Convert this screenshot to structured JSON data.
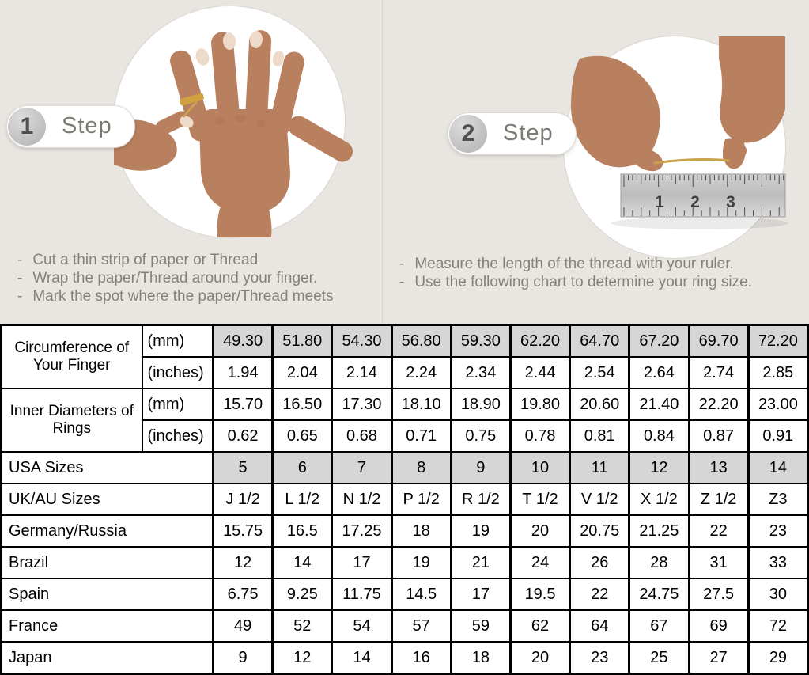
{
  "steps": [
    {
      "number": "1",
      "label": "Step",
      "instructions": [
        "Cut a thin strip of paper or Thread",
        "Wrap the paper/Thread around your finger.",
        "Mark the spot where the paper/Thread meets"
      ]
    },
    {
      "number": "2",
      "label": "Step",
      "instructions": [
        "Measure the length of the thread with your ruler.",
        "Use the following chart to determine your ring size."
      ]
    }
  ],
  "decor": {
    "ruler_numbers": [
      "1",
      "2",
      "3"
    ],
    "background_color": "#e9e6e2",
    "shaded_cell_color": "#d6d6d6",
    "thread_color": "#c9a24b"
  },
  "size_chart": {
    "group_rows": [
      {
        "label": "Circumference of Your Finger",
        "sub_rows": [
          {
            "unit": "(mm)",
            "shaded": true,
            "values": [
              "49.30",
              "51.80",
              "54.30",
              "56.80",
              "59.30",
              "62.20",
              "64.70",
              "67.20",
              "69.70",
              "72.20"
            ]
          },
          {
            "unit": "(inches)",
            "shaded": false,
            "values": [
              "1.94",
              "2.04",
              "2.14",
              "2.24",
              "2.34",
              "2.44",
              "2.54",
              "2.64",
              "2.74",
              "2.85"
            ]
          }
        ]
      },
      {
        "label": "Inner Diameters of Rings",
        "sub_rows": [
          {
            "unit": "(mm)",
            "shaded": false,
            "values": [
              "15.70",
              "16.50",
              "17.30",
              "18.10",
              "18.90",
              "19.80",
              "20.60",
              "21.40",
              "22.20",
              "23.00"
            ]
          },
          {
            "unit": "(inches)",
            "shaded": false,
            "values": [
              "0.62",
              "0.65",
              "0.68",
              "0.71",
              "0.75",
              "0.78",
              "0.81",
              "0.84",
              "0.87",
              "0.91"
            ]
          }
        ]
      }
    ],
    "simple_rows": [
      {
        "label": "USA Sizes",
        "shaded": true,
        "values": [
          "5",
          "6",
          "7",
          "8",
          "9",
          "10",
          "11",
          "12",
          "13",
          "14"
        ]
      },
      {
        "label": "UK/AU Sizes",
        "shaded": false,
        "values": [
          "J 1/2",
          "L 1/2",
          "N 1/2",
          "P 1/2",
          "R 1/2",
          "T 1/2",
          "V 1/2",
          "X 1/2",
          "Z 1/2",
          "Z3"
        ]
      },
      {
        "label": "Germany/Russia",
        "shaded": false,
        "values": [
          "15.75",
          "16.5",
          "17.25",
          "18",
          "19",
          "20",
          "20.75",
          "21.25",
          "22",
          "23"
        ]
      },
      {
        "label": "Brazil",
        "shaded": false,
        "values": [
          "12",
          "14",
          "17",
          "19",
          "21",
          "24",
          "26",
          "28",
          "31",
          "33"
        ]
      },
      {
        "label": "Spain",
        "shaded": false,
        "values": [
          "6.75",
          "9.25",
          "11.75",
          "14.5",
          "17",
          "19.5",
          "22",
          "24.75",
          "27.5",
          "30"
        ]
      },
      {
        "label": "France",
        "shaded": false,
        "values": [
          "49",
          "52",
          "54",
          "57",
          "59",
          "62",
          "64",
          "67",
          "69",
          "72"
        ]
      },
      {
        "label": "Japan",
        "shaded": false,
        "values": [
          "9",
          "12",
          "14",
          "16",
          "18",
          "20",
          "23",
          "25",
          "27",
          "29"
        ]
      }
    ]
  }
}
